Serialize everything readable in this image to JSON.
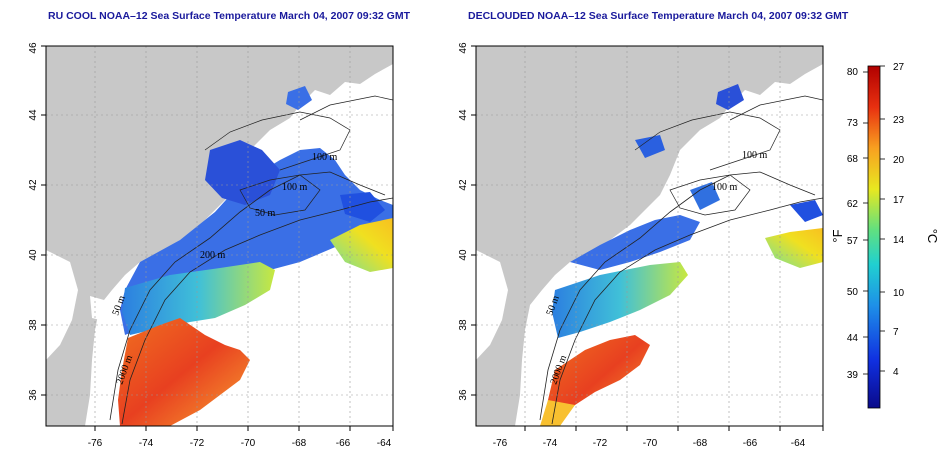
{
  "panels": [
    {
      "title": "RU COOL NOAA–12 Sea Surface Temperature March 04, 2007 09:32 GMT",
      "contour_labels": [
        "100 m",
        "100 m",
        "50 m",
        "200 m",
        "50 m",
        "2000 m"
      ]
    },
    {
      "title": "DECLOUDED NOAA–12 Sea Surface Temperature March 04, 2007 09:32 GMT",
      "contour_labels": [
        "100 m",
        "100 m",
        "50 m",
        "2000 m"
      ]
    }
  ],
  "axes": {
    "lon_ticks": [
      "-76",
      "-74",
      "-72",
      "-70",
      "-68",
      "-66",
      "-64"
    ],
    "lat_ticks": [
      "36",
      "38",
      "40",
      "42",
      "44",
      "46"
    ],
    "lon_range": [
      -77.5,
      -63
    ],
    "lat_range": [
      35,
      46
    ]
  },
  "colorbar": {
    "fahrenheit_label": "°F",
    "celsius_label": "°C",
    "fahrenheit_ticks": [
      "80",
      "73",
      "68",
      "62",
      "57",
      "50",
      "44",
      "39"
    ],
    "celsius_ticks": [
      "27",
      "23",
      "20",
      "17",
      "14",
      "10",
      "7",
      "4"
    ],
    "colors": [
      "#0a0a8a",
      "#1030e0",
      "#1e90e8",
      "#20d0d0",
      "#60e080",
      "#e8e820",
      "#f8a020",
      "#e83010",
      "#b00000"
    ]
  }
}
